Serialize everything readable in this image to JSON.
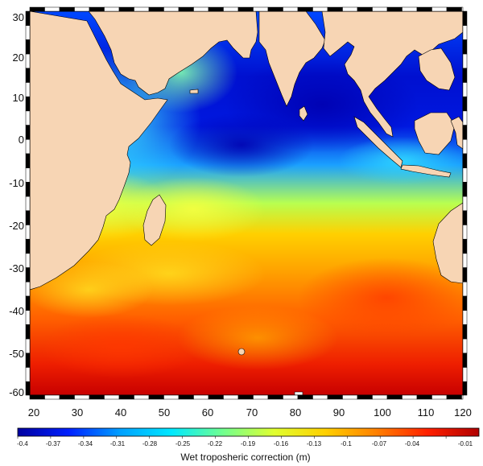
{
  "map": {
    "lon_ticks": [
      "20",
      "30",
      "40",
      "50",
      "60",
      "70",
      "80",
      "90",
      "100",
      "110",
      "120"
    ],
    "lat_ticks": [
      "30",
      "20",
      "10",
      "0",
      "-10",
      "-20",
      "-30",
      "-40",
      "-50",
      "-60"
    ],
    "lon_range": [
      18,
      121
    ],
    "lat_range": [
      -62,
      32
    ],
    "land_color": "#f7d5b4",
    "coast_color": "#000000"
  },
  "colorbar": {
    "title": "Wet troposheric correction (m)",
    "tick_labels": [
      "-0.4",
      "-0.37",
      "-0.34",
      "-0.31",
      "-0.28",
      "-0.25",
      "-0.22",
      "-0.19",
      "-0.16",
      "-0.13",
      "-0.1",
      "-0.07",
      "-0.04",
      "-0.01"
    ],
    "range": [
      -0.4,
      0
    ],
    "colors": [
      "#0000a0",
      "#0020ff",
      "#00a0ff",
      "#00e8ff",
      "#70ff90",
      "#e0ff30",
      "#ffd000",
      "#ff8000",
      "#ff2000",
      "#b00000"
    ]
  }
}
